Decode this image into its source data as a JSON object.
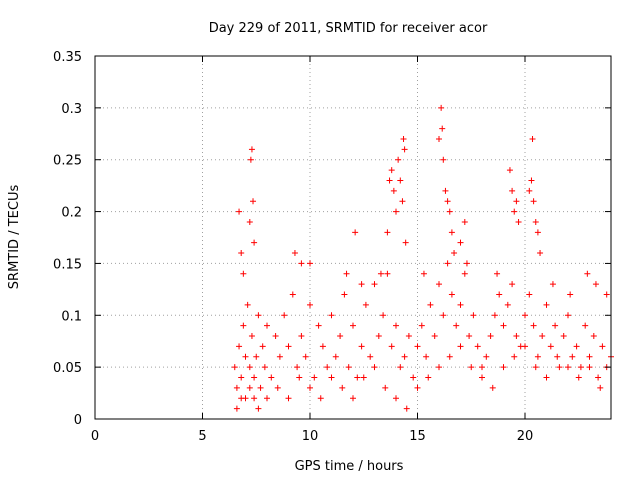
{
  "chart_data": {
    "type": "scatter",
    "title": "Day 229 of 2011, SRMTID for receiver acor",
    "xlabel": "GPS time / hours",
    "ylabel": "SRMTID / TECUs",
    "xlim": [
      0,
      24
    ],
    "ylim": [
      0,
      0.35
    ],
    "xticks": [
      0,
      5,
      10,
      15,
      20
    ],
    "xtick_labels": [
      "0",
      "5",
      "10",
      "15",
      "20"
    ],
    "yticks": [
      0,
      0.05,
      0.1,
      0.15,
      0.2,
      0.25,
      0.3,
      0.35
    ],
    "ytick_labels": [
      "0",
      "0.05",
      "0.1",
      "0.15",
      "0.2",
      "0.25",
      "0.3",
      "0.35"
    ],
    "grid": true,
    "marker": "+",
    "color": "#ff0000",
    "series": [
      {
        "name": "SRMTID",
        "x": [
          6.5,
          6.6,
          6.7,
          6.8,
          6.9,
          7.0,
          7.1,
          7.2,
          7.3,
          7.4,
          7.5,
          7.6,
          7.7,
          7.8,
          7.9,
          8.0,
          8.2,
          8.4,
          8.6,
          8.8,
          9.0,
          9.2,
          9.4,
          9.6,
          9.8,
          10.0,
          10.2,
          10.4,
          10.6,
          10.8,
          11.0,
          11.2,
          11.4,
          11.6,
          11.8,
          12.0,
          12.2,
          12.4,
          12.6,
          12.8,
          13.0,
          13.2,
          13.4,
          13.6,
          13.8,
          14.0,
          14.2,
          14.4,
          14.6,
          14.8,
          15.0,
          15.2,
          15.4,
          15.6,
          15.8,
          16.0,
          16.2,
          16.4,
          16.6,
          16.8,
          17.0,
          17.2,
          17.4,
          17.6,
          17.8,
          18.0,
          18.2,
          18.4,
          18.6,
          18.8,
          19.0,
          19.2,
          19.4,
          19.6,
          19.8,
          20.0,
          20.2,
          20.4,
          20.6,
          20.8,
          21.0,
          21.2,
          21.4,
          21.6,
          21.8,
          22.0,
          22.2,
          22.4,
          22.6,
          22.8,
          23.0,
          23.2,
          23.4,
          23.6,
          23.8,
          24.0,
          6.6,
          6.8,
          7.0,
          7.2,
          7.4,
          7.6,
          8.0,
          8.5,
          9.0,
          9.5,
          10.0,
          10.5,
          11.0,
          11.5,
          12.0,
          12.5,
          13.0,
          13.5,
          14.0,
          14.5,
          15.0,
          15.5,
          16.0,
          16.5,
          17.0,
          17.5,
          18.0,
          18.5,
          19.0,
          19.5,
          20.0,
          20.5,
          21.0,
          21.5,
          22.0,
          22.5,
          23.0,
          23.5,
          7.25,
          7.3,
          7.35,
          7.2,
          7.4,
          6.7,
          6.8,
          6.9,
          13.6,
          13.7,
          13.8,
          13.9,
          14.0,
          14.1,
          14.2,
          14.3,
          14.35,
          14.4,
          14.45,
          16.0,
          16.1,
          16.15,
          16.2,
          16.3,
          16.4,
          16.5,
          16.6,
          16.7,
          17.0,
          17.2,
          19.3,
          19.4,
          19.5,
          19.6,
          19.7,
          20.2,
          20.3,
          20.35,
          20.4,
          20.5,
          20.6,
          20.7,
          12.1,
          10.0,
          9.3,
          9.6,
          11.7,
          12.4,
          13.3,
          15.3,
          17.3,
          18.7,
          21.3,
          22.1,
          22.9,
          23.3,
          23.8
        ],
        "y": [
          0.05,
          0.03,
          0.07,
          0.04,
          0.09,
          0.06,
          0.11,
          0.05,
          0.08,
          0.04,
          0.06,
          0.1,
          0.03,
          0.07,
          0.05,
          0.09,
          0.04,
          0.08,
          0.06,
          0.1,
          0.07,
          0.12,
          0.05,
          0.08,
          0.06,
          0.11,
          0.04,
          0.09,
          0.07,
          0.05,
          0.1,
          0.06,
          0.08,
          0.12,
          0.05,
          0.09,
          0.04,
          0.07,
          0.11,
          0.06,
          0.13,
          0.08,
          0.1,
          0.14,
          0.07,
          0.09,
          0.05,
          0.06,
          0.08,
          0.04,
          0.07,
          0.09,
          0.06,
          0.11,
          0.08,
          0.13,
          0.1,
          0.15,
          0.12,
          0.09,
          0.11,
          0.14,
          0.08,
          0.1,
          0.07,
          0.05,
          0.06,
          0.08,
          0.1,
          0.12,
          0.09,
          0.11,
          0.13,
          0.08,
          0.07,
          0.1,
          0.12,
          0.09,
          0.06,
          0.08,
          0.11,
          0.07,
          0.09,
          0.05,
          0.08,
          0.1,
          0.06,
          0.07,
          0.05,
          0.09,
          0.06,
          0.08,
          0.04,
          0.07,
          0.05,
          0.06,
          0.01,
          0.02,
          0.02,
          0.03,
          0.02,
          0.01,
          0.02,
          0.03,
          0.02,
          0.04,
          0.03,
          0.02,
          0.04,
          0.03,
          0.02,
          0.04,
          0.05,
          0.03,
          0.02,
          0.01,
          0.03,
          0.04,
          0.05,
          0.06,
          0.07,
          0.05,
          0.04,
          0.03,
          0.05,
          0.06,
          0.07,
          0.05,
          0.04,
          0.06,
          0.05,
          0.04,
          0.05,
          0.03,
          0.25,
          0.26,
          0.21,
          0.19,
          0.17,
          0.2,
          0.16,
          0.14,
          0.18,
          0.23,
          0.24,
          0.22,
          0.2,
          0.25,
          0.23,
          0.21,
          0.27,
          0.26,
          0.17,
          0.27,
          0.3,
          0.28,
          0.25,
          0.22,
          0.21,
          0.2,
          0.18,
          0.16,
          0.17,
          0.19,
          0.24,
          0.22,
          0.2,
          0.21,
          0.19,
          0.22,
          0.23,
          0.27,
          0.21,
          0.19,
          0.18,
          0.16,
          0.18,
          0.15,
          0.16,
          0.15,
          0.14,
          0.13,
          0.14,
          0.14,
          0.15,
          0.14,
          0.13,
          0.12,
          0.14,
          0.13,
          0.12
        ]
      }
    ]
  }
}
